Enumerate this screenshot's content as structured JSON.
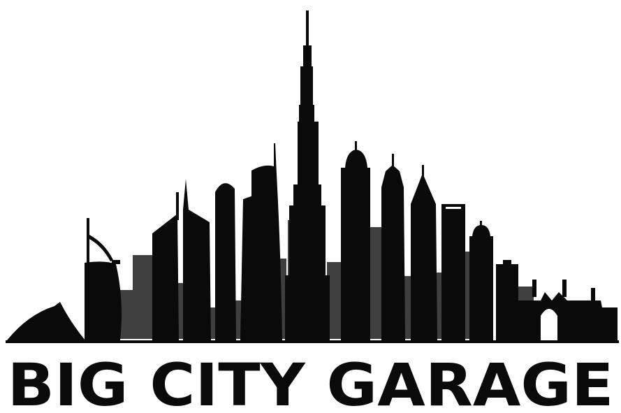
{
  "logo": {
    "wordmark": "BIG CITY GARAGE",
    "ink_color": "#0a0a0a",
    "shadow_color": "#3f3f3f",
    "background_color": "#ffffff"
  }
}
